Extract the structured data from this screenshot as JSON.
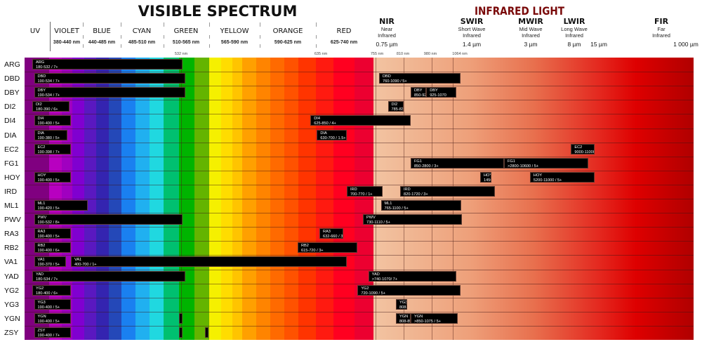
{
  "header": {
    "visible_title": "VISIBLE SPECTRUM",
    "infrared_title": "INFRARED LIGHT",
    "uv_label": "UV",
    "bands": [
      {
        "name": "VIOLET",
        "range": "380-440 nm"
      },
      {
        "name": "BLUE",
        "range": "440-485 nm"
      },
      {
        "name": "CYAN",
        "range": "485-510 nm"
      },
      {
        "name": "GREEN",
        "range": "510-565 nm"
      },
      {
        "name": "YELLOW",
        "range": "565-590 nm"
      },
      {
        "name": "ORANGE",
        "range": "590-625 nm"
      },
      {
        "name": "RED",
        "range": "625-740 nm"
      }
    ],
    "ir_bands": [
      {
        "name": "NIR",
        "line1": "Near",
        "line2": "Infrared",
        "value": "0.75 µm"
      },
      {
        "name": "SWIR",
        "line1": "Short Wave",
        "line2": "Infrared",
        "value": "1.4 µm"
      },
      {
        "name": "MWIR",
        "line1": "Mid Wave",
        "line2": "Infrared",
        "value": "3 µm"
      },
      {
        "name": "LWIR",
        "line1": "Long Wave",
        "line2": "Infrared",
        "value": "8 µm"
      },
      {
        "name": "",
        "line1": "",
        "line2": "",
        "value": "15 µm"
      },
      {
        "name": "FIR",
        "line1": "Far",
        "line2": "Infrared",
        "value": "1 000 µm"
      }
    ],
    "ticks": [
      "532 nm",
      "635 nm",
      "755 nm",
      "810 nm",
      "980 nm",
      "1064 nm"
    ]
  },
  "colors": {
    "title": "#111111",
    "infrared_title": "#7a0a0a",
    "bar": "#000000",
    "bar_text": "#ffffff"
  },
  "rows": [
    {
      "code": "ARG",
      "bars": [
        {
          "start": 180,
          "end": 532,
          "line1": "ARG",
          "line2": "180-532 / 7+"
        }
      ]
    },
    {
      "code": "DBD",
      "bars": [
        {
          "start": 190,
          "end": 534,
          "line1": "DBD",
          "line2": "190-534 / 7+"
        },
        {
          "start": 760,
          "end": 1090,
          "line1": "DBD",
          "line2": "760-1090 / 5+"
        }
      ]
    },
    {
      "code": "DBY",
      "bars": [
        {
          "start": 190,
          "end": 534,
          "line1": "DBY",
          "line2": "190-534 / 7+"
        },
        {
          "start": 850,
          "end": 925,
          "line1": "DBY",
          "line2": "850-925 / 5+"
        },
        {
          "start": 925,
          "end": 1070,
          "line1": "DBY",
          "line2": "925-1070"
        }
      ]
    },
    {
      "code": "DI2",
      "bars": [
        {
          "start": 180,
          "end": 390,
          "line1": "DI2",
          "line2": "180-390 / 6+"
        },
        {
          "start": 785,
          "end": 830,
          "line1": "DI2",
          "line2": "785-830 / 5+"
        }
      ]
    },
    {
      "code": "DI4",
      "bars": [
        {
          "start": 190,
          "end": 400,
          "line1": "DI4",
          "line2": "190-400 / 5+"
        },
        {
          "start": 625,
          "end": 850,
          "line1": "DI4",
          "line2": "625-850 / 4+"
        }
      ]
    },
    {
      "code": "DIA",
      "bars": [
        {
          "start": 190,
          "end": 380,
          "line1": "DIA",
          "line2": "190-380 / 5+"
        },
        {
          "start": 630,
          "end": 700,
          "line1": "DIA",
          "line2": "630-700 / 1.5+"
        }
      ]
    },
    {
      "code": "EC2",
      "bars": [
        {
          "start": 190,
          "end": 398,
          "line1": "EC2",
          "line2": "190-398 / 7+"
        },
        {
          "start": 9000,
          "end": 11000,
          "line1": "EC2",
          "line2": "9000-11000 / 7+"
        }
      ]
    },
    {
      "code": "FG1",
      "bars": [
        {
          "start": 850,
          "end": 2800,
          "line1": "FG1",
          "line2": "850-2800 / 3+"
        },
        {
          "start": 2800,
          "end": 10600,
          "line1": "FG1",
          "line2": ">2800-10600 / 5+"
        }
      ]
    },
    {
      "code": "HOY",
      "bars": [
        {
          "start": 190,
          "end": 400,
          "line1": "HOY",
          "line2": "190-400 / 5+"
        },
        {
          "start": 1450,
          "end": 1650,
          "line1": "HOY",
          "line2": "1450-1650 / 2+"
        },
        {
          "start": 5200,
          "end": 11000,
          "line1": "HOY",
          "line2": "5200-11000 / 5+"
        }
      ]
    },
    {
      "code": "IRD",
      "bars": [
        {
          "start": 700,
          "end": 770,
          "line1": "IRD",
          "line2": "700-770 / 1+"
        },
        {
          "start": 820,
          "end": 1720,
          "line1": "IRD",
          "line2": "820-1720 / 3+"
        }
      ]
    },
    {
      "code": "ML1",
      "bars": [
        {
          "start": 190,
          "end": 420,
          "line1": "ML1",
          "line2": "190-420 / 5+"
        },
        {
          "start": 765,
          "end": 1100,
          "line1": "ML1",
          "line2": "765-1100 / 5+"
        }
      ]
    },
    {
      "code": "PWV",
      "bars": [
        {
          "start": 190,
          "end": 532,
          "line1": "PWV",
          "line2": "190-532 / 8+"
        },
        {
          "start": 730,
          "end": 1110,
          "line1": "PWV",
          "line2": "730-1110 / 5+"
        }
      ]
    },
    {
      "code": "RA3",
      "bars": [
        {
          "start": 190,
          "end": 400,
          "line1": "RA3",
          "line2": "190-400 / 5+"
        },
        {
          "start": 632,
          "end": 660,
          "line1": "RA3",
          "line2": "632-660 / 3+"
        }
      ]
    },
    {
      "code": "RB2",
      "bars": [
        {
          "start": 190,
          "end": 400,
          "line1": "RB2",
          "line2": "190-400 / 6+"
        },
        {
          "start": 615,
          "end": 720,
          "line1": "RB2",
          "line2": "615-720 / 3+"
        }
      ]
    },
    {
      "code": "VA1",
      "bars": [
        {
          "start": 190,
          "end": 370,
          "line1": "VA1",
          "line2": "190-370 / 5+"
        },
        {
          "start": 400,
          "end": 700,
          "line1": "VA1",
          "line2": "400-700 / 1+"
        }
      ]
    },
    {
      "code": "YAD",
      "bars": [
        {
          "start": 180,
          "end": 534,
          "line1": "YAD",
          "line2": "180-534 / 7+"
        },
        {
          "start": 740,
          "end": 1070,
          "line1": "YAD",
          "line2": ">740-1070/ 7+"
        }
      ]
    },
    {
      "code": "YG2",
      "bars": [
        {
          "start": 180,
          "end": 400,
          "line1": "YG2",
          "line2": "180-400 / 6+"
        },
        {
          "start": 720,
          "end": 1090,
          "line1": "YG2",
          "line2": "720-1090 / 5+"
        }
      ]
    },
    {
      "code": "YG3",
      "bars": [
        {
          "start": 190,
          "end": 400,
          "line1": "YG3",
          "line2": "190-400 / 5+"
        },
        {
          "start": 808,
          "end": 840,
          "line1": "YG3",
          "line2": "808-840 / 4+"
        }
      ]
    },
    {
      "code": "YGN",
      "bars": [
        {
          "start": 190,
          "end": 400,
          "line1": "YGN",
          "line2": "190-400 / 5+"
        },
        {
          "start": 528,
          "end": 532,
          "line1": "",
          "line2": ""
        },
        {
          "start": 808,
          "end": 850,
          "line1": "YGN",
          "line2": "808-850 / 4+"
        },
        {
          "start": 850,
          "end": 1075,
          "line1": "YGN",
          "line2": ">850-1075 / 5+"
        }
      ]
    },
    {
      "code": "ZSY",
      "bars": [
        {
          "start": 190,
          "end": 400,
          "line1": "ZSY",
          "line2": "190-400 / 7+"
        },
        {
          "start": 528,
          "end": 532,
          "line1": "",
          "line2": ""
        },
        {
          "start": 548,
          "end": 550,
          "line1": "",
          "line2": ""
        }
      ]
    }
  ]
}
